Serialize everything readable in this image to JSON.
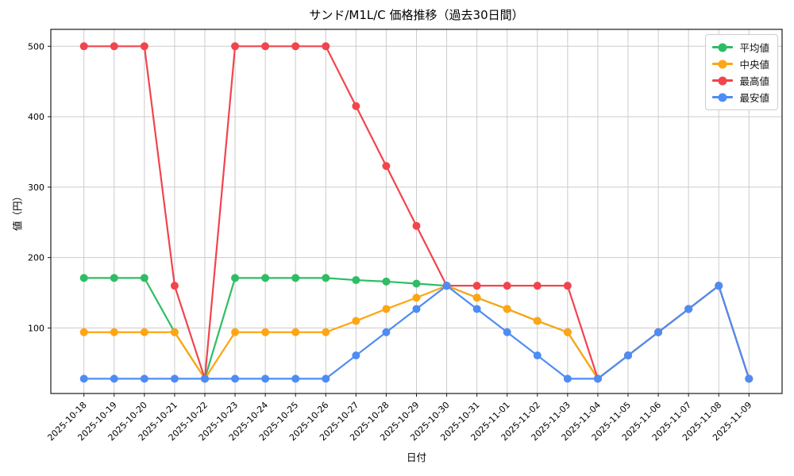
{
  "figure": {
    "title": "サンド/M1L/C 価格推移（過去30日間）",
    "xlabel": "日付",
    "ylabel": "値（円）"
  },
  "chart_data": {
    "type": "line",
    "title": "サンド/M1L/C 価格推移（過去30日間）",
    "xlabel": "日付",
    "ylabel": "値（円）",
    "x": [
      "2025-10-18",
      "2025-10-19",
      "2025-10-20",
      "2025-10-21",
      "2025-10-22",
      "2025-10-23",
      "2025-10-24",
      "2025-10-25",
      "2025-10-26",
      "2025-10-27",
      "2025-10-28",
      "2025-10-29",
      "2025-10-30",
      "2025-10-31",
      "2025-11-01",
      "2025-11-02",
      "2025-11-03",
      "2025-11-04",
      "2025-11-05",
      "2025-11-06",
      "2025-11-07",
      "2025-11-08",
      "2025-11-09"
    ],
    "y_ticks": [
      100,
      200,
      300,
      400,
      500
    ],
    "ylim": [
      7,
      524
    ],
    "grid": true,
    "legend_position": "upper-right",
    "series": [
      {
        "name": "平均値",
        "color": "#2ebd64",
        "values": [
          171,
          171,
          171,
          94,
          28,
          171,
          171,
          171,
          171,
          168,
          166,
          163,
          160,
          143,
          127,
          110,
          94,
          28,
          61,
          94,
          127,
          160,
          28
        ]
      },
      {
        "name": "中央値",
        "color": "#ffa514",
        "values": [
          94,
          94,
          94,
          94,
          28,
          94,
          94,
          94,
          94,
          110,
          127,
          143,
          160,
          143,
          127,
          110,
          94,
          28,
          61,
          94,
          127,
          160,
          28
        ]
      },
      {
        "name": "最高値",
        "color": "#f2444d",
        "values": [
          500,
          500,
          500,
          160,
          28,
          500,
          500,
          500,
          500,
          415,
          330,
          245,
          160,
          160,
          160,
          160,
          160,
          28,
          61,
          94,
          127,
          160,
          28
        ]
      },
      {
        "name": "最安値",
        "color": "#4d8cf5",
        "values": [
          28,
          28,
          28,
          28,
          28,
          28,
          28,
          28,
          28,
          61,
          94,
          127,
          160,
          127,
          94,
          61,
          28,
          28,
          61,
          94,
          127,
          160,
          28
        ]
      }
    ]
  },
  "style": {
    "background": "#ffffff",
    "grid_color": "#cccccc",
    "spine_color": "#1a1a1a",
    "text_color": "#000000",
    "legend_border": "#cccccc"
  }
}
